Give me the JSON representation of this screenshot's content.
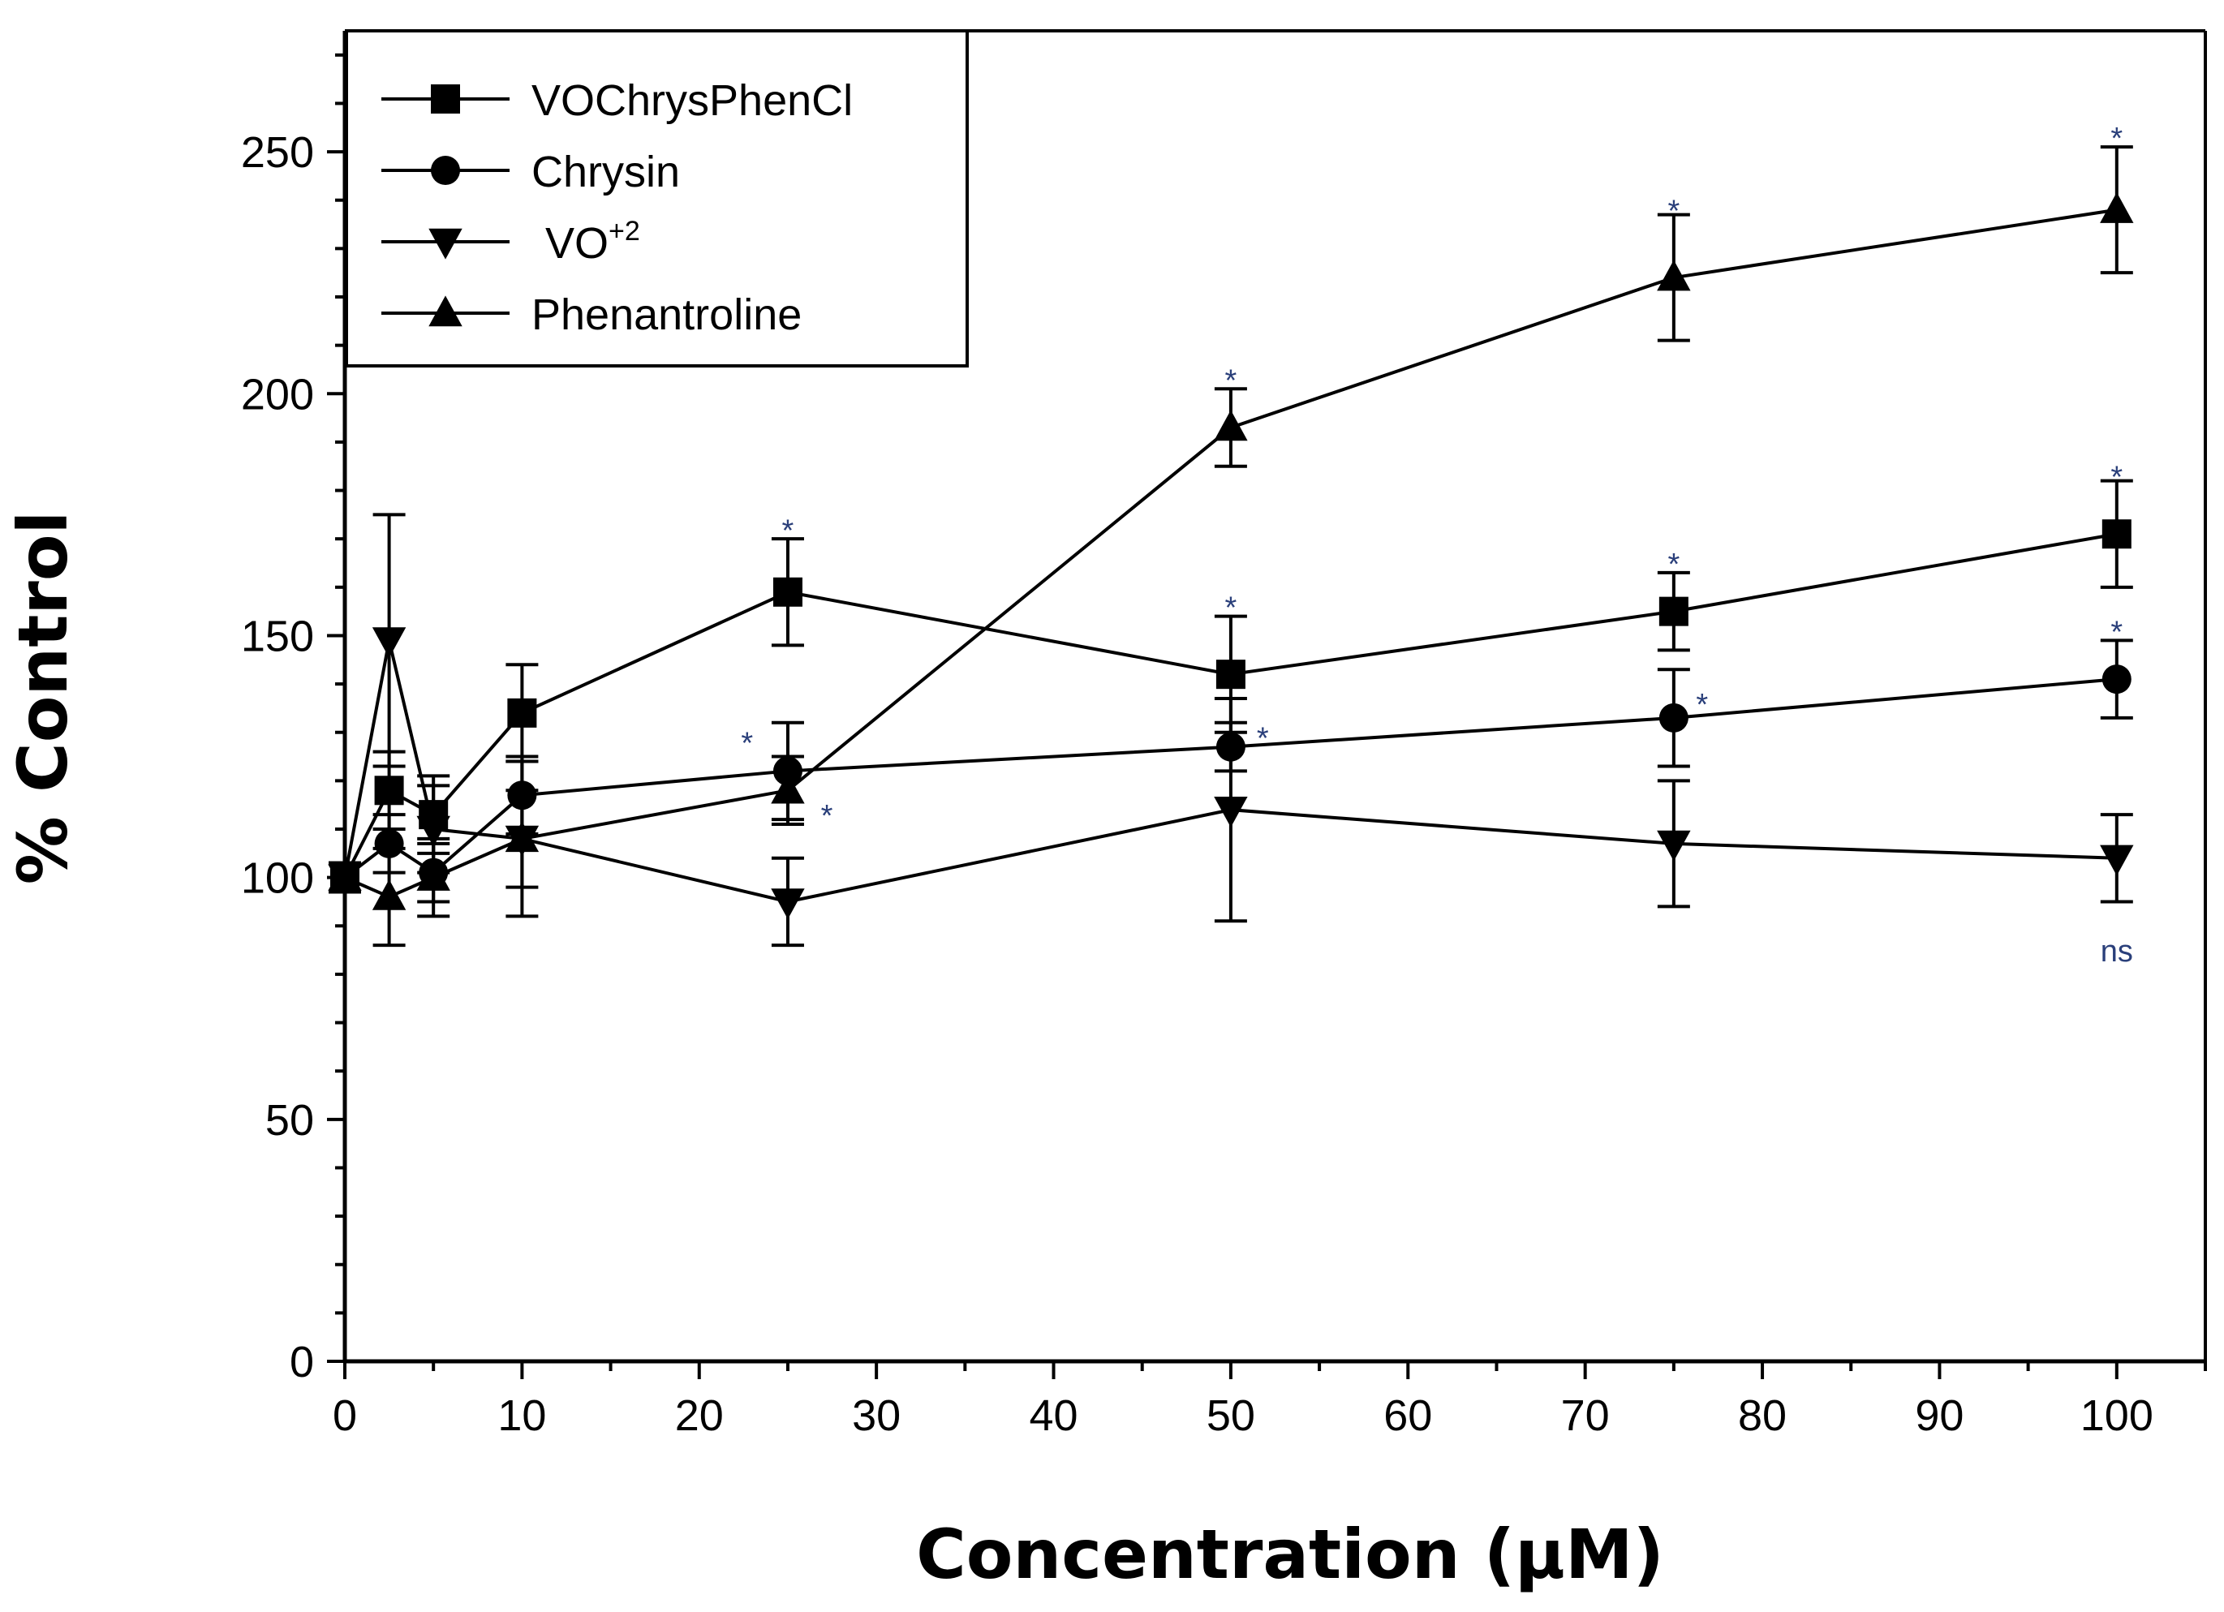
{
  "chart_data": {
    "type": "line",
    "title": "",
    "xlabel": "Concentration (μM)",
    "ylabel": "% Control",
    "xlim": [
      0,
      105
    ],
    "ylim": [
      0,
      275
    ],
    "x_ticks": [
      0,
      10,
      20,
      30,
      40,
      50,
      60,
      70,
      80,
      90,
      100
    ],
    "y_ticks": [
      0,
      50,
      100,
      150,
      200,
      250
    ],
    "x_tick_labels": [
      "0",
      "10",
      "20",
      "30",
      "40",
      "50",
      "60",
      "70",
      "80",
      "90",
      "100"
    ],
    "y_tick_labels": [
      "0",
      "50",
      "100",
      "150",
      "200",
      "250"
    ],
    "legend_position": "top-left",
    "series": [
      {
        "name": "VOChrysPhenCl",
        "marker": "square",
        "x": [
          0,
          2.5,
          5,
          10,
          25,
          50,
          75,
          100
        ],
        "y": [
          100,
          118,
          113,
          134,
          159,
          142,
          155,
          171
        ],
        "err": [
          3,
          8,
          8,
          10,
          11,
          12,
          8,
          11
        ]
      },
      {
        "name": "Chrysin",
        "marker": "circle",
        "x": [
          0,
          2.5,
          5,
          10,
          25,
          50,
          75,
          100
        ],
        "y": [
          100,
          107,
          101,
          117,
          122,
          127,
          133,
          141
        ],
        "err": [
          3,
          6,
          6,
          8,
          10,
          5,
          10,
          8
        ]
      },
      {
        "name": "VO",
        "name_sup": "+2",
        "marker": "triangle-down",
        "x": [
          0,
          2.5,
          5,
          10,
          25,
          50,
          75,
          100
        ],
        "y": [
          100,
          149,
          110,
          108,
          95,
          114,
          107,
          104
        ],
        "err": [
          3,
          26,
          9,
          16,
          9,
          23,
          13,
          9
        ]
      },
      {
        "name": "Phenantroline",
        "marker": "triangle-up",
        "x": [
          0,
          2.5,
          5,
          10,
          25,
          50,
          75,
          100
        ],
        "y": [
          100,
          96,
          100,
          108,
          118,
          193,
          224,
          238
        ],
        "err": [
          3,
          10,
          8,
          10,
          7,
          8,
          13,
          13
        ]
      }
    ],
    "annotations": [
      {
        "text": "*",
        "x": 25,
        "y": 172
      },
      {
        "text": "*",
        "x": 22.7,
        "y": 128
      },
      {
        "text": "*",
        "x": 27.2,
        "y": 113
      },
      {
        "text": "*",
        "x": 50,
        "y": 203
      },
      {
        "text": "*",
        "x": 50,
        "y": 156
      },
      {
        "text": "*",
        "x": 51.8,
        "y": 129
      },
      {
        "text": "*",
        "x": 75,
        "y": 238
      },
      {
        "text": "*",
        "x": 75,
        "y": 165
      },
      {
        "text": "*",
        "x": 76.6,
        "y": 136
      },
      {
        "text": "*",
        "x": 100,
        "y": 253
      },
      {
        "text": "*",
        "x": 100,
        "y": 183
      },
      {
        "text": "*",
        "x": 100,
        "y": 151
      },
      {
        "text": "ns",
        "x": 100,
        "y": 85
      }
    ]
  }
}
